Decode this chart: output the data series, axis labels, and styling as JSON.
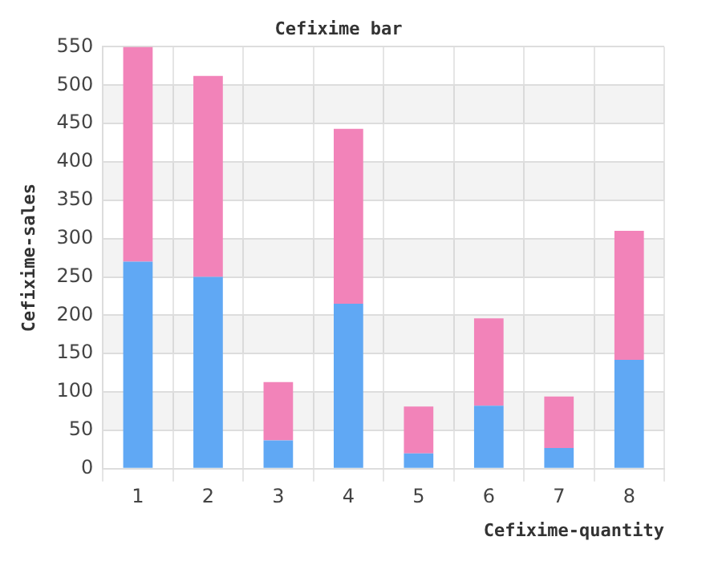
{
  "chart_data": {
    "type": "bar",
    "title": "Cefixime bar",
    "xlabel": "Cefixime-quantity",
    "ylabel": "Cefixime-sales",
    "categories": [
      "1",
      "2",
      "3",
      "4",
      "5",
      "6",
      "7",
      "8"
    ],
    "stacked": true,
    "series": [
      {
        "color": "#60a8f4",
        "values": [
          270,
          250,
          37,
          215,
          20,
          82,
          27,
          142
        ]
      },
      {
        "color": "#f283b9",
        "values": [
          280,
          262,
          76,
          228,
          61,
          114,
          67,
          168
        ]
      }
    ],
    "ylim": [
      0,
      550
    ],
    "yticks": [
      0,
      50,
      100,
      150,
      200,
      250,
      300,
      350,
      400,
      450,
      500,
      550
    ],
    "grid": true
  }
}
